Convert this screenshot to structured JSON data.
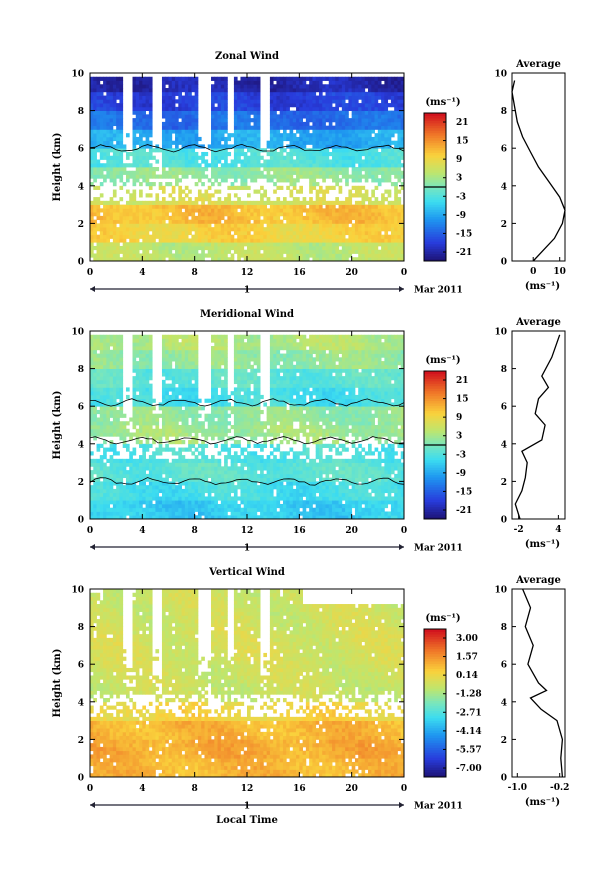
{
  "panels": [
    {
      "id": "zonal",
      "title": "Zonal Wind",
      "ylabel": "Height (km)",
      "x_ticks": [
        "0",
        "4",
        "8",
        "12",
        "16",
        "20",
        "0"
      ],
      "y_ticks": [
        "0",
        "2",
        "4",
        "6",
        "8",
        "10"
      ],
      "date_marker": "1",
      "date_label": "Mar 2011",
      "colorbar": {
        "unit": "(ms⁻¹)",
        "ticks": [
          "21",
          "15",
          "9",
          "3",
          "-3",
          "-9",
          "-15",
          "-21"
        ],
        "min": -24,
        "max": 24,
        "zero_contour": true
      },
      "avg_title": "Average",
      "avg_xticks": [
        "0",
        "10"
      ],
      "avg_xunit": "(ms⁻¹)",
      "xlim": [
        0,
        24
      ],
      "ylim": [
        0,
        10
      ]
    },
    {
      "id": "meridional",
      "title": "Meridional Wind",
      "ylabel": "Height (km)",
      "x_ticks": [
        "0",
        "4",
        "8",
        "12",
        "16",
        "20",
        "0"
      ],
      "y_ticks": [
        "0",
        "2",
        "4",
        "6",
        "8",
        "10"
      ],
      "date_marker": "1",
      "date_label": "Mar 2011",
      "colorbar": {
        "unit": "(ms⁻¹)",
        "ticks": [
          "21",
          "15",
          "9",
          "3",
          "-3",
          "-9",
          "-15",
          "-21"
        ],
        "min": -24,
        "max": 24,
        "zero_contour": true
      },
      "avg_title": "Average",
      "avg_xticks": [
        "-2",
        "4"
      ],
      "avg_xunit": "(ms⁻¹)",
      "xlim": [
        0,
        24
      ],
      "ylim": [
        0,
        10
      ]
    },
    {
      "id": "vertical",
      "title": "Vertical Wind",
      "ylabel": "Height (km)",
      "xlabel": "Local Time",
      "x_ticks": [
        "0",
        "4",
        "8",
        "12",
        "16",
        "20",
        "0"
      ],
      "y_ticks": [
        "0",
        "2",
        "4",
        "6",
        "8",
        "10"
      ],
      "date_marker": "1",
      "date_label": "Mar 2011",
      "colorbar": {
        "unit": "(ms⁻¹)",
        "ticks": [
          "3.00",
          "1.57",
          "0.14",
          "-1.28",
          "-2.71",
          "-4.14",
          "-5.57",
          "-7.00"
        ],
        "min": -7.7,
        "max": 3.7,
        "zero_contour": false
      },
      "avg_title": "Average",
      "avg_xticks": [
        "-1.0",
        "-0.2"
      ],
      "avg_xunit": "(ms⁻¹)",
      "xlim": [
        0,
        24
      ],
      "ylim": [
        0,
        10
      ]
    }
  ],
  "chart_data": [
    {
      "type": "heatmap",
      "title": "Zonal Wind",
      "xlabel": "",
      "ylabel": "Height (km)",
      "xlim": [
        0,
        24
      ],
      "ylim": [
        0,
        10
      ],
      "heights_km": [
        0.5,
        1.5,
        2.5,
        3.5,
        4.5,
        5.5,
        6.5,
        7.5,
        8.5,
        9.5
      ],
      "typical_values_ms": [
        5,
        10,
        12,
        7,
        2,
        -3,
        -9,
        -14,
        -18,
        -21
      ],
      "colorbar_range": [
        -24,
        24
      ]
    },
    {
      "type": "line",
      "title": "Average",
      "xlabel": "(ms⁻¹)",
      "ylabel": "",
      "xlim": [
        -8,
        12
      ],
      "ylim": [
        0,
        10
      ],
      "series": [
        {
          "x": [
            0,
            4,
            8,
            11,
            12,
            10,
            6,
            2,
            -1,
            -4,
            -6,
            -7,
            -8,
            -7
          ],
          "y": [
            0,
            0.6,
            1.2,
            2.0,
            2.7,
            3.4,
            4.2,
            5.0,
            5.8,
            6.6,
            7.4,
            8.2,
            9.0,
            9.6
          ]
        }
      ]
    },
    {
      "type": "heatmap",
      "title": "Meridional Wind",
      "xlabel": "",
      "ylabel": "Height (km)",
      "xlim": [
        0,
        24
      ],
      "ylim": [
        0,
        10
      ],
      "heights_km": [
        0.5,
        1.5,
        2.5,
        3.5,
        4.5,
        5.5,
        6.5,
        7.5,
        8.5,
        9.5
      ],
      "typical_values_ms": [
        -6,
        -4,
        -2,
        -3,
        3,
        2,
        -4,
        -2,
        2,
        4
      ],
      "colorbar_range": [
        -24,
        24
      ]
    },
    {
      "type": "line",
      "title": "Average",
      "xlabel": "(ms⁻¹)",
      "ylabel": "",
      "xlim": [
        -3,
        5
      ],
      "ylim": [
        0,
        10
      ],
      "series": [
        {
          "x": [
            -1.8,
            -2.5,
            -1.5,
            -1.0,
            -0.7,
            -1.5,
            1.5,
            2.0,
            0.5,
            1.0,
            2.5,
            1.5,
            3.0,
            4.2
          ],
          "y": [
            0,
            0.8,
            1.5,
            2.2,
            3.0,
            3.6,
            4.2,
            5.0,
            5.6,
            6.4,
            7.0,
            7.6,
            8.6,
            9.8
          ]
        }
      ]
    },
    {
      "type": "heatmap",
      "title": "Vertical Wind",
      "xlabel": "Local Time",
      "ylabel": "Height (km)",
      "xlim": [
        0,
        24
      ],
      "ylim": [
        0,
        10
      ],
      "heights_km": [
        0.5,
        1.5,
        2.5,
        3.5,
        4.5,
        5.5,
        6.5,
        7.5,
        8.5,
        9.5
      ],
      "typical_values_ms": [
        1.0,
        1.2,
        1.0,
        0.3,
        -0.6,
        -0.5,
        -0.4,
        -0.4,
        -0.5,
        -0.5
      ],
      "colorbar_range": [
        -7.7,
        3.7
      ]
    },
    {
      "type": "line",
      "title": "Average",
      "xlabel": "(ms⁻¹)",
      "ylabel": "",
      "xlim": [
        -1.1,
        -0.1
      ],
      "ylim": [
        0,
        10
      ],
      "series": [
        {
          "x": [
            -0.15,
            -0.18,
            -0.15,
            -0.25,
            -0.55,
            -0.75,
            -0.45,
            -0.6,
            -0.8,
            -0.7,
            -0.85,
            -0.75,
            -0.9
          ],
          "y": [
            0,
            1.0,
            2.0,
            3.0,
            3.6,
            4.2,
            4.6,
            5.0,
            6.0,
            7.0,
            8.0,
            9.0,
            10.0
          ]
        }
      ]
    }
  ]
}
